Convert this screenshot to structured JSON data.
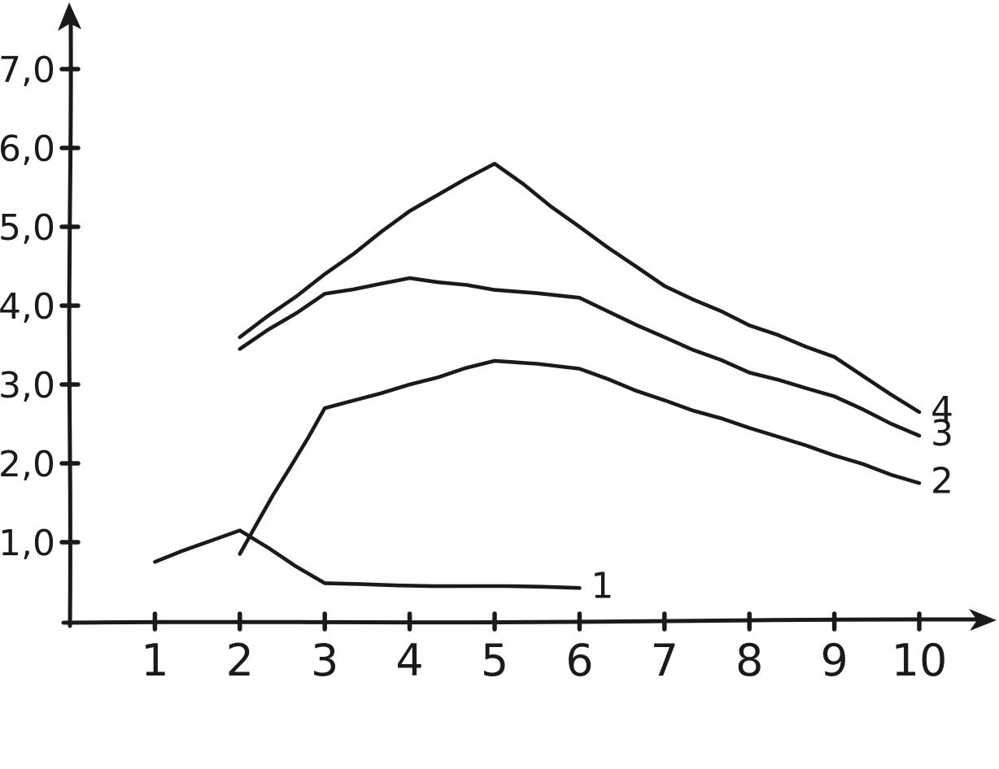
{
  "chart_data": {
    "type": "line",
    "title": "",
    "xlabel": "",
    "ylabel": "",
    "style": "hand-drawn-ink-on-white",
    "ink_color": "#1a1a1a",
    "background_color": "#ffffff",
    "grid": false,
    "legend_position": "end-of-line-labels",
    "xlim": [
      0,
      10.9
    ],
    "ylim": [
      0,
      7.8
    ],
    "x_ticks": [
      {
        "value": 1,
        "label": "1"
      },
      {
        "value": 2,
        "label": "2"
      },
      {
        "value": 3,
        "label": "3"
      },
      {
        "value": 4,
        "label": "4"
      },
      {
        "value": 5,
        "label": "5"
      },
      {
        "value": 6,
        "label": "6"
      },
      {
        "value": 7,
        "label": "7"
      },
      {
        "value": 8,
        "label": "8"
      },
      {
        "value": 9,
        "label": "9"
      },
      {
        "value": 10,
        "label": "10"
      }
    ],
    "y_ticks": [
      {
        "value": 1,
        "label": "1,0"
      },
      {
        "value": 2,
        "label": "2,0"
      },
      {
        "value": 3,
        "label": "3,0"
      },
      {
        "value": 4,
        "label": "4,0"
      },
      {
        "value": 5,
        "label": "5,0"
      },
      {
        "value": 6,
        "label": "6,0"
      },
      {
        "value": 7,
        "label": "7,0"
      }
    ],
    "series": [
      {
        "name": "curve-1",
        "label": "1",
        "points": [
          [
            1,
            0.75
          ],
          [
            2,
            1.15
          ],
          [
            3,
            0.48
          ],
          [
            6,
            0.42
          ]
        ]
      },
      {
        "name": "curve-2",
        "label": "2",
        "points": [
          [
            2,
            0.85
          ],
          [
            3,
            2.7
          ],
          [
            4,
            3.0
          ],
          [
            5,
            3.3
          ],
          [
            6,
            3.2
          ],
          [
            7,
            2.8
          ],
          [
            8,
            2.45
          ],
          [
            9,
            2.1
          ],
          [
            10,
            1.75
          ]
        ]
      },
      {
        "name": "curve-3",
        "label": "3",
        "points": [
          [
            2,
            3.45
          ],
          [
            3,
            4.15
          ],
          [
            4,
            4.35
          ],
          [
            5,
            4.2
          ],
          [
            6,
            4.1
          ],
          [
            7,
            3.6
          ],
          [
            8,
            3.15
          ],
          [
            9,
            2.85
          ],
          [
            10,
            2.35
          ]
        ]
      },
      {
        "name": "curve-4",
        "label": "4",
        "points": [
          [
            2,
            3.6
          ],
          [
            3,
            4.4
          ],
          [
            4,
            5.2
          ],
          [
            5,
            5.8
          ],
          [
            6,
            5.0
          ],
          [
            7,
            4.25
          ],
          [
            8,
            3.75
          ],
          [
            9,
            3.35
          ],
          [
            10,
            2.65
          ]
        ]
      }
    ]
  }
}
